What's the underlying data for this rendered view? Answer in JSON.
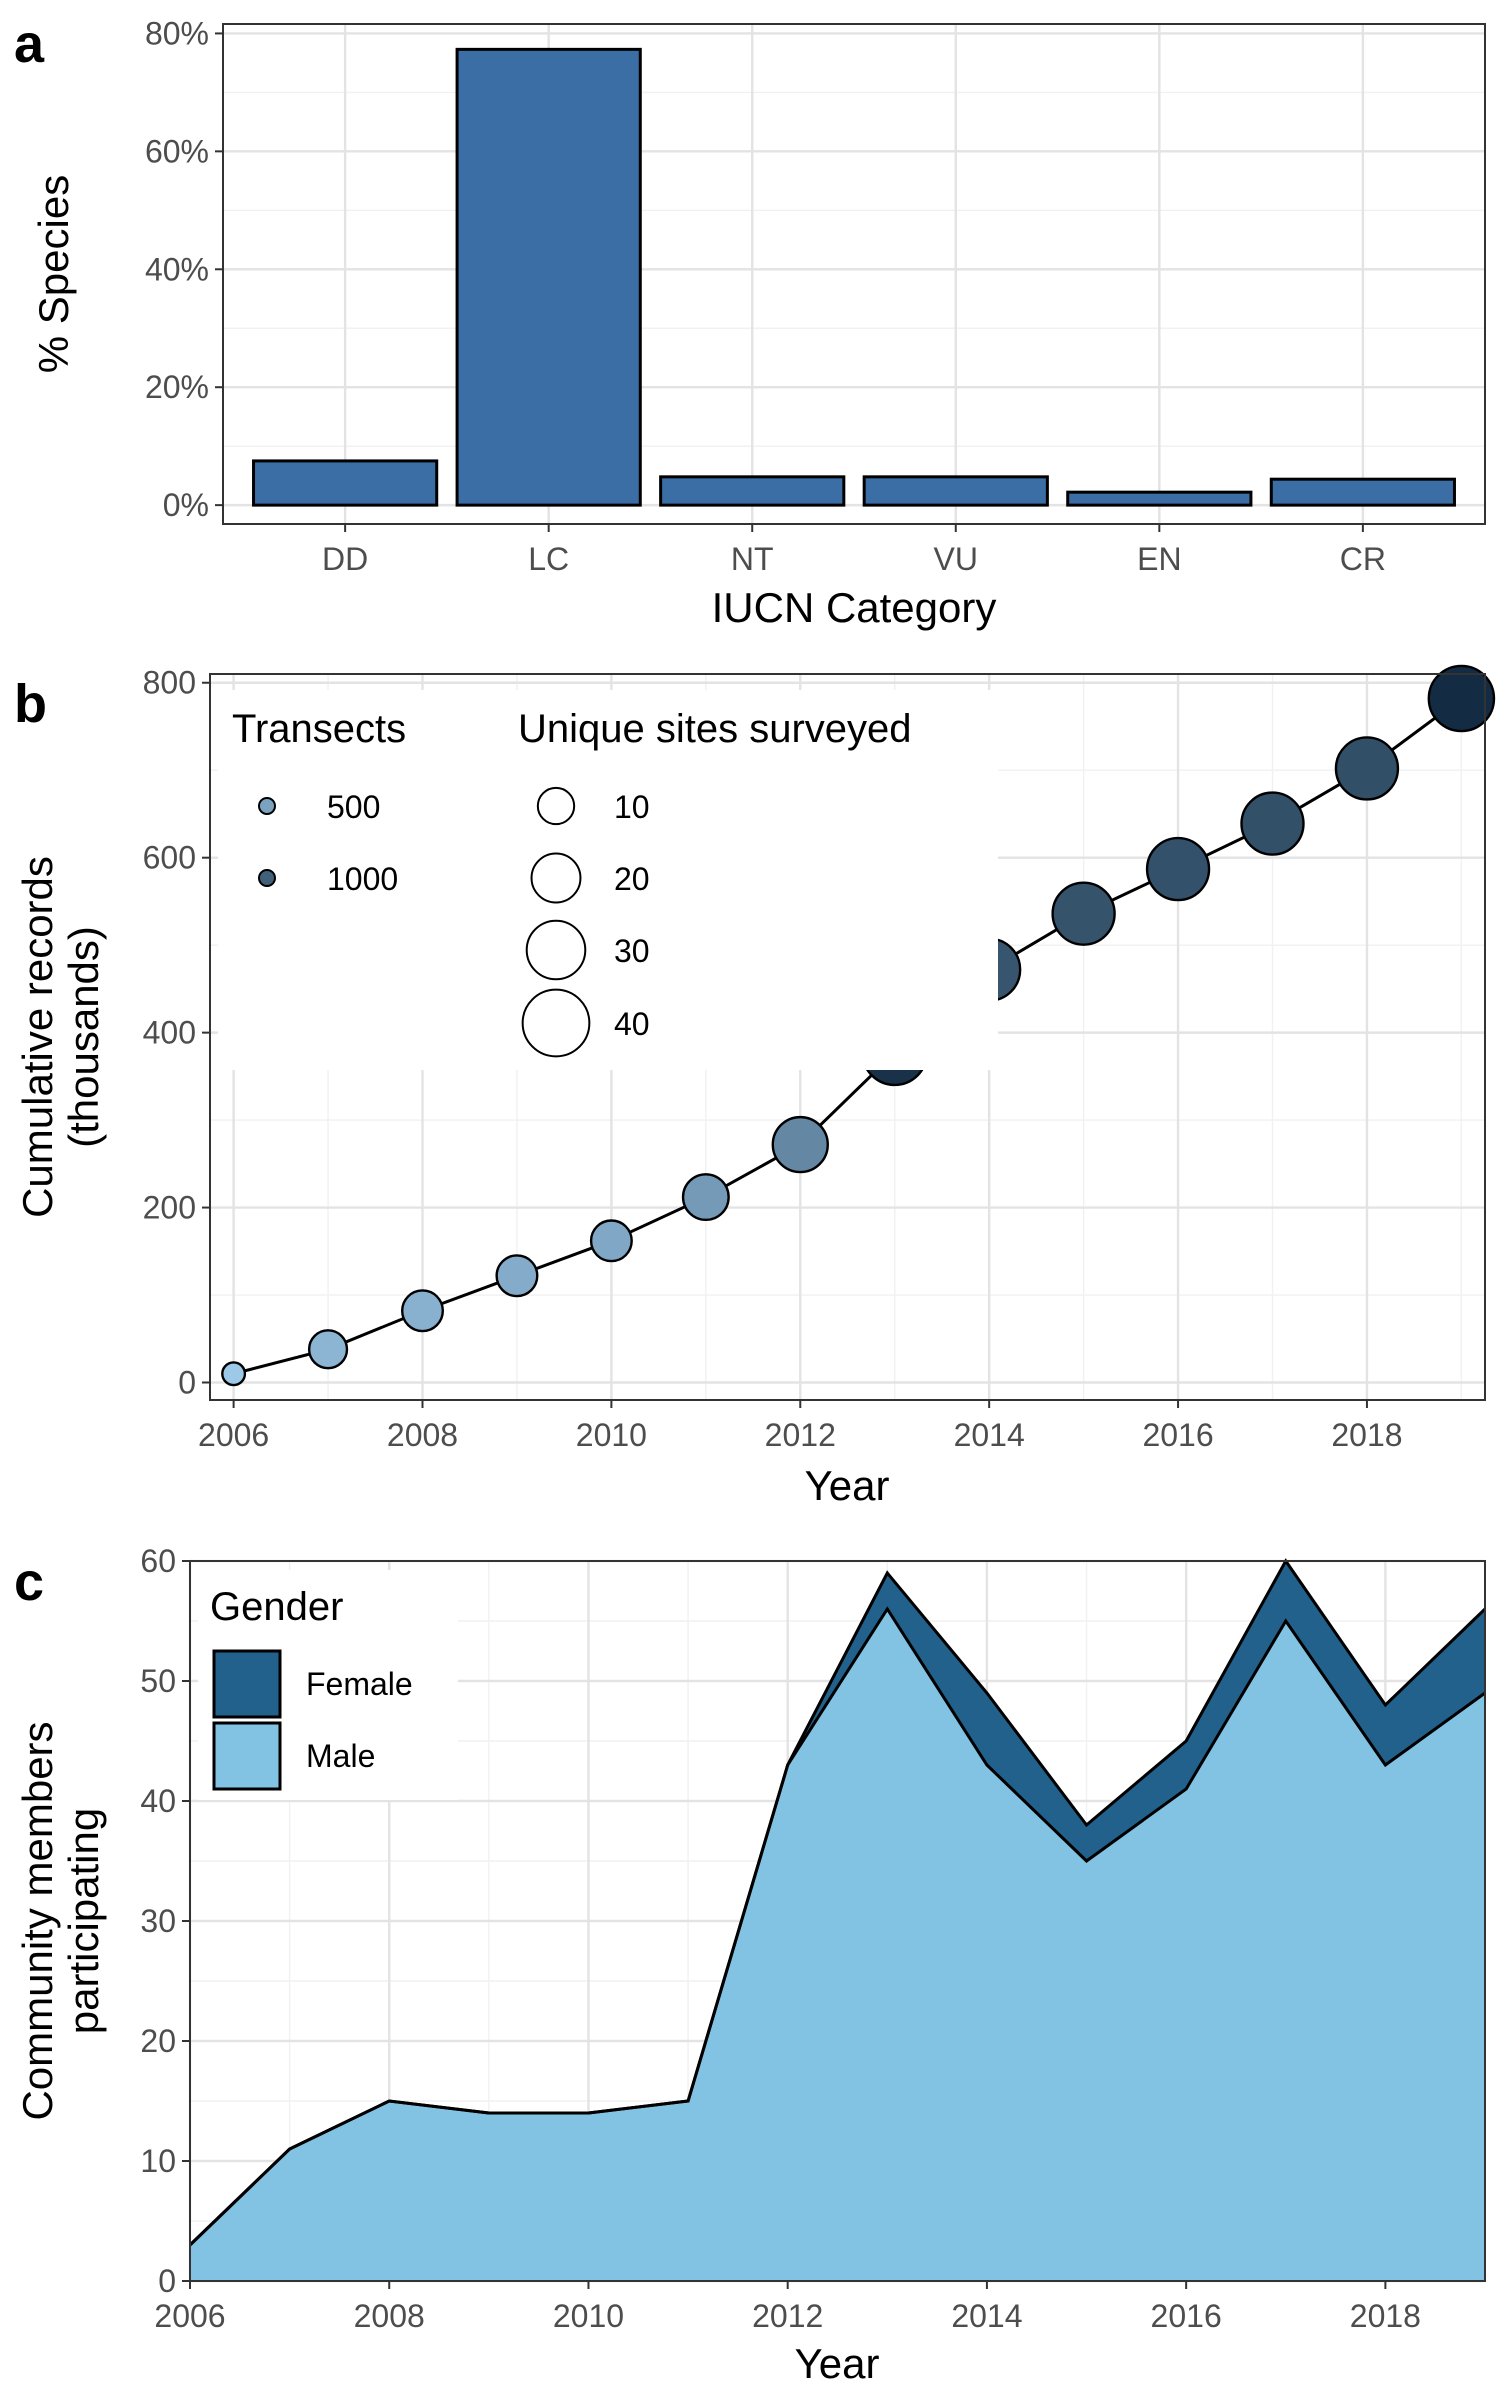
{
  "panels": {
    "a": {
      "letter": "a",
      "chart_data": {
        "type": "bar",
        "categories": [
          "DD",
          "LC",
          "NT",
          "VU",
          "EN",
          "CR"
        ],
        "values": [
          7.5,
          77.3,
          4.8,
          4.8,
          2.2,
          4.4
        ],
        "xlabel": "IUCN Category",
        "ylabel": "% Species",
        "ylim": [
          0,
          80
        ],
        "yticks": [
          0,
          20,
          40,
          60,
          80
        ],
        "ytick_labels": [
          "0%",
          "20%",
          "40%",
          "60%",
          "80%"
        ],
        "bar_color": "#3A6EA5",
        "grid": true
      }
    },
    "b": {
      "letter": "b",
      "chart_data": {
        "type": "scatter",
        "x": [
          2006,
          2007,
          2008,
          2009,
          2010,
          2011,
          2012,
          2013,
          2014,
          2015,
          2016,
          2017,
          2018,
          2019
        ],
        "y": [
          10,
          38,
          82,
          122,
          162,
          212,
          272,
          377,
          472,
          536,
          587,
          639,
          702,
          782
        ],
        "sites": [
          3,
          11,
          13,
          13,
          13,
          17,
          26,
          37,
          34,
          34,
          34,
          34,
          34,
          38
        ],
        "transects": [
          200,
          350,
          380,
          420,
          450,
          560,
          700,
          1350,
          1080,
          1100,
          1110,
          1120,
          1130,
          1400
        ],
        "connect_points": true,
        "xlabel": "Year",
        "ylabel_lines": [
          "Cumulative records",
          "(thousands)"
        ],
        "xlim": [
          2005.75,
          2019.25
        ],
        "ylim": [
          -20,
          810
        ],
        "xticks": [
          2006,
          2008,
          2010,
          2012,
          2014,
          2016,
          2018
        ],
        "yticks": [
          0,
          200,
          400,
          600,
          800
        ],
        "color_low": "#9DC9E8",
        "color_high": "#132B43",
        "transect_range": [
          200,
          1400
        ],
        "legend_color": {
          "title": "Transects",
          "items": [
            {
              "label": "500",
              "value": 500
            },
            {
              "label": "1000",
              "value": 1000
            }
          ]
        },
        "legend_size": {
          "title": "Unique sites surveyed",
          "items": [
            {
              "label": "10",
              "value": 10
            },
            {
              "label": "20",
              "value": 20
            },
            {
              "label": "30",
              "value": 30
            },
            {
              "label": "40",
              "value": 40
            }
          ]
        },
        "grid": true
      }
    },
    "c": {
      "letter": "c",
      "chart_data": {
        "type": "area",
        "stacked": true,
        "x": [
          2006,
          2007,
          2008,
          2009,
          2010,
          2011,
          2012,
          2013,
          2014,
          2015,
          2016,
          2017,
          2018,
          2019
        ],
        "series": [
          {
            "name": "Male",
            "color": "#82C2E3",
            "values": [
              3,
              11,
              15,
              14,
              14,
              15,
              43,
              56,
              43,
              35,
              41,
              55,
              43,
              49
            ]
          },
          {
            "name": "Female",
            "color": "#21618C",
            "values": [
              0,
              0,
              0,
              0,
              0,
              0,
              0,
              3,
              6,
              3,
              4,
              5,
              5,
              7
            ]
          }
        ],
        "xlabel": "Year",
        "ylabel_lines": [
          "Community members",
          "participating"
        ],
        "xlim": [
          2006,
          2019
        ],
        "ylim": [
          0,
          60
        ],
        "xticks": [
          2006,
          2008,
          2010,
          2012,
          2014,
          2016,
          2018
        ],
        "yticks": [
          0,
          10,
          20,
          30,
          40,
          50,
          60
        ],
        "legend": {
          "title": "Gender",
          "items": [
            {
              "label": "Female",
              "color": "#21618C"
            },
            {
              "label": "Male",
              "color": "#82C2E3"
            }
          ]
        },
        "grid": true
      }
    }
  }
}
